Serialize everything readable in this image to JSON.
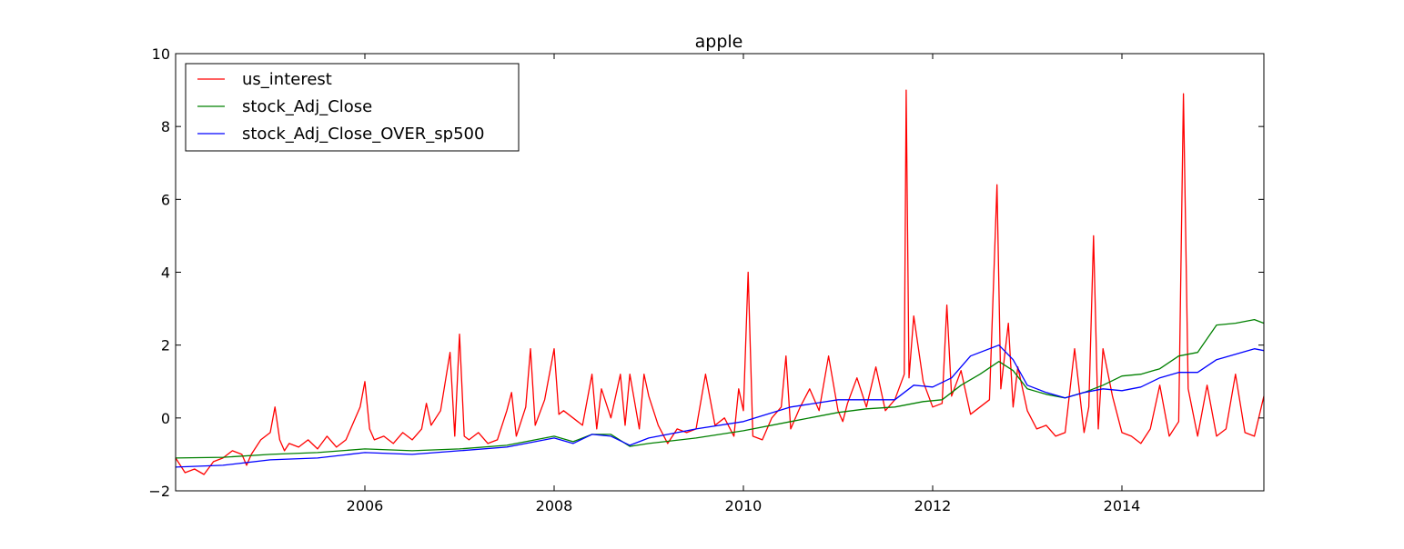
{
  "chart_data": {
    "type": "line",
    "title": "apple",
    "xlabel": "",
    "ylabel": "",
    "xlim": [
      2004.0,
      2015.5
    ],
    "ylim": [
      -2,
      10
    ],
    "xticks": [
      2006,
      2008,
      2010,
      2012,
      2014
    ],
    "xtick_labels": [
      "2006",
      "2008",
      "2010",
      "2012",
      "2014"
    ],
    "yticks": [
      -2,
      0,
      2,
      4,
      6,
      8,
      10
    ],
    "ytick_labels": [
      "−2",
      "0",
      "2",
      "4",
      "6",
      "8",
      "10"
    ],
    "grid": false,
    "legend_position": "upper-left",
    "series": [
      {
        "name": "us_interest",
        "color": "#ff0000",
        "x": [
          2004.0,
          2004.1,
          2004.2,
          2004.3,
          2004.4,
          2004.5,
          2004.6,
          2004.7,
          2004.75,
          2004.8,
          2004.9,
          2005.0,
          2005.05,
          2005.1,
          2005.15,
          2005.2,
          2005.3,
          2005.4,
          2005.5,
          2005.6,
          2005.7,
          2005.8,
          2005.9,
          2005.95,
          2006.0,
          2006.05,
          2006.1,
          2006.2,
          2006.3,
          2006.4,
          2006.5,
          2006.6,
          2006.65,
          2006.7,
          2006.8,
          2006.9,
          2006.95,
          2007.0,
          2007.05,
          2007.1,
          2007.2,
          2007.3,
          2007.4,
          2007.5,
          2007.55,
          2007.6,
          2007.7,
          2007.75,
          2007.8,
          2007.9,
          2008.0,
          2008.05,
          2008.1,
          2008.2,
          2008.3,
          2008.4,
          2008.45,
          2008.5,
          2008.6,
          2008.7,
          2008.75,
          2008.8,
          2008.9,
          2008.95,
          2009.0,
          2009.1,
          2009.2,
          2009.3,
          2009.4,
          2009.5,
          2009.6,
          2009.7,
          2009.8,
          2009.9,
          2009.95,
          2010.0,
          2010.05,
          2010.1,
          2010.2,
          2010.3,
          2010.4,
          2010.45,
          2010.5,
          2010.6,
          2010.7,
          2010.8,
          2010.9,
          2011.0,
          2011.05,
          2011.1,
          2011.2,
          2011.3,
          2011.4,
          2011.5,
          2011.6,
          2011.7,
          2011.72,
          2011.75,
          2011.8,
          2011.9,
          2012.0,
          2012.1,
          2012.15,
          2012.2,
          2012.3,
          2012.4,
          2012.5,
          2012.6,
          2012.68,
          2012.72,
          2012.8,
          2012.85,
          2012.9,
          2013.0,
          2013.1,
          2013.2,
          2013.3,
          2013.4,
          2013.5,
          2013.6,
          2013.65,
          2013.7,
          2013.75,
          2013.8,
          2013.9,
          2014.0,
          2014.1,
          2014.2,
          2014.3,
          2014.4,
          2014.5,
          2014.6,
          2014.65,
          2014.7,
          2014.8,
          2014.9,
          2015.0,
          2015.1,
          2015.2,
          2015.3,
          2015.4,
          2015.5
        ],
        "y": [
          -1.1,
          -1.5,
          -1.4,
          -1.55,
          -1.2,
          -1.1,
          -0.9,
          -1.0,
          -1.3,
          -1.0,
          -0.6,
          -0.4,
          0.3,
          -0.6,
          -0.9,
          -0.7,
          -0.8,
          -0.6,
          -0.85,
          -0.5,
          -0.8,
          -0.6,
          0.0,
          0.3,
          1.0,
          -0.3,
          -0.6,
          -0.5,
          -0.7,
          -0.4,
          -0.6,
          -0.3,
          0.4,
          -0.2,
          0.2,
          1.8,
          -0.5,
          2.3,
          -0.5,
          -0.6,
          -0.4,
          -0.7,
          -0.6,
          0.2,
          0.7,
          -0.5,
          0.3,
          1.9,
          -0.2,
          0.5,
          1.9,
          0.1,
          0.2,
          0.0,
          -0.2,
          1.2,
          -0.3,
          0.8,
          0.0,
          1.2,
          -0.2,
          1.2,
          -0.3,
          1.2,
          0.6,
          -0.2,
          -0.7,
          -0.3,
          -0.4,
          -0.3,
          1.2,
          -0.2,
          0.0,
          -0.5,
          0.8,
          0.2,
          4.0,
          -0.5,
          -0.6,
          0.0,
          0.3,
          1.7,
          -0.3,
          0.3,
          0.8,
          0.2,
          1.7,
          0.2,
          -0.1,
          0.4,
          1.1,
          0.3,
          1.4,
          0.2,
          0.5,
          1.2,
          9.0,
          1.1,
          2.8,
          1.0,
          0.3,
          0.4,
          3.1,
          0.6,
          1.3,
          0.1,
          0.3,
          0.5,
          6.4,
          0.8,
          2.6,
          0.3,
          1.4,
          0.2,
          -0.3,
          -0.2,
          -0.5,
          -0.4,
          1.9,
          -0.4,
          0.3,
          5.0,
          -0.3,
          1.9,
          0.6,
          -0.4,
          -0.5,
          -0.7,
          -0.3,
          0.9,
          -0.5,
          -0.1,
          8.9,
          0.8,
          -0.5,
          0.9,
          -0.5,
          -0.3,
          1.2,
          -0.4,
          -0.5,
          0.6
        ]
      },
      {
        "name": "stock_Adj_Close",
        "color": "#008000",
        "x": [
          2004.0,
          2004.5,
          2005.0,
          2005.5,
          2006.0,
          2006.5,
          2007.0,
          2007.5,
          2008.0,
          2008.2,
          2008.4,
          2008.6,
          2008.8,
          2009.0,
          2009.5,
          2010.0,
          2010.5,
          2011.0,
          2011.3,
          2011.6,
          2011.9,
          2012.1,
          2012.3,
          2012.5,
          2012.7,
          2012.85,
          2013.0,
          2013.2,
          2013.4,
          2013.6,
          2013.8,
          2014.0,
          2014.2,
          2014.4,
          2014.6,
          2014.8,
          2015.0,
          2015.2,
          2015.4,
          2015.5
        ],
        "y": [
          -1.1,
          -1.08,
          -1.0,
          -0.95,
          -0.85,
          -0.9,
          -0.85,
          -0.75,
          -0.5,
          -0.65,
          -0.45,
          -0.45,
          -0.78,
          -0.7,
          -0.55,
          -0.35,
          -0.1,
          0.15,
          0.25,
          0.3,
          0.45,
          0.5,
          0.9,
          1.2,
          1.55,
          1.3,
          0.8,
          0.65,
          0.55,
          0.7,
          0.9,
          1.15,
          1.2,
          1.35,
          1.7,
          1.8,
          2.55,
          2.6,
          2.7,
          2.6
        ]
      },
      {
        "name": "stock_Adj_Close_OVER_sp500",
        "color": "#0000ff",
        "x": [
          2004.0,
          2004.5,
          2005.0,
          2005.5,
          2006.0,
          2006.5,
          2007.0,
          2007.5,
          2008.0,
          2008.2,
          2008.4,
          2008.6,
          2008.8,
          2009.0,
          2009.5,
          2010.0,
          2010.5,
          2011.0,
          2011.3,
          2011.6,
          2011.8,
          2012.0,
          2012.2,
          2012.4,
          2012.7,
          2012.85,
          2013.0,
          2013.2,
          2013.4,
          2013.6,
          2013.8,
          2014.0,
          2014.2,
          2014.4,
          2014.6,
          2014.8,
          2015.0,
          2015.2,
          2015.4,
          2015.5
        ],
        "y": [
          -1.35,
          -1.3,
          -1.15,
          -1.1,
          -0.95,
          -1.0,
          -0.9,
          -0.8,
          -0.55,
          -0.7,
          -0.45,
          -0.5,
          -0.75,
          -0.55,
          -0.3,
          -0.1,
          0.3,
          0.5,
          0.5,
          0.5,
          0.9,
          0.85,
          1.1,
          1.7,
          2.0,
          1.6,
          0.9,
          0.7,
          0.55,
          0.7,
          0.8,
          0.75,
          0.85,
          1.1,
          1.25,
          1.25,
          1.6,
          1.75,
          1.9,
          1.85
        ]
      }
    ]
  }
}
